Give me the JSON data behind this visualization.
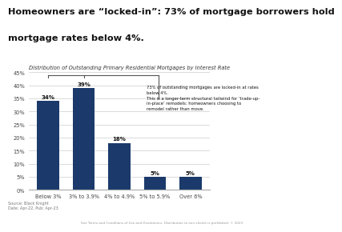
{
  "title_line1": "Homeowners are “locked-in”: 73% of mortgage borrowers hold",
  "title_line2": "mortgage rates below 4%.",
  "subtitle": "Distribution of Outstanding Primary Residential Mortgages by Interest Rate",
  "categories": [
    "Below 3%",
    "3% to 3.9%",
    "4% to 4.9%",
    "5% to 5.9%",
    "Over 6%"
  ],
  "values": [
    34,
    39,
    18,
    5,
    5
  ],
  "bar_color": "#1b3a6b",
  "ylim": [
    0,
    45
  ],
  "yticks": [
    0,
    5,
    10,
    15,
    20,
    25,
    30,
    35,
    40,
    45
  ],
  "ytick_labels": [
    "0%",
    "5%",
    "10%",
    "15%",
    "20%",
    "25%",
    "30%",
    "35%",
    "40%",
    "45%"
  ],
  "bar_labels": [
    "34%",
    "39%",
    "18%",
    "5%",
    "5%"
  ],
  "annot_line1": "73% of outstanding mortgages are locked-in at rates\nbelow 4%.",
  "annot_line2": "This is a longer-term structural tailwind for ‘trade-up-\nin-place’ remodels: homeowners choosing to\nremodel rather than move.",
  "annotation_box_color": "#d6e8f7",
  "source_text": "Source: Black Knight\nDate: Apr-22, Pub: Apr-23",
  "footer_text": "See Terms and Conditions of Use and Disclaimers. Distribution to non-clients is prohibited. © 2023",
  "background_color": "#ffffff"
}
